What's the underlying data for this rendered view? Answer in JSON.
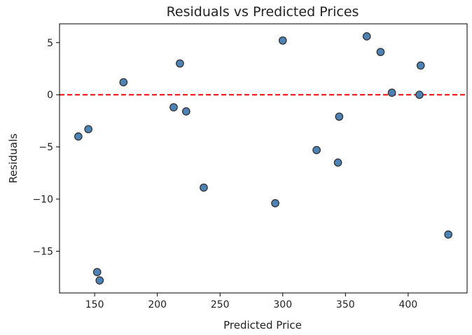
{
  "chart_data": {
    "type": "scatter",
    "title": "Residuals vs Predicted Prices",
    "xlabel": "Predicted Price",
    "ylabel": "Residuals",
    "xlim": [
      122,
      447
    ],
    "ylim": [
      -19,
      6.8
    ],
    "xticks": [
      150,
      200,
      250,
      300,
      350,
      400
    ],
    "xtick_labels": [
      "150",
      "200",
      "250",
      "300",
      "350",
      "400"
    ],
    "yticks": [
      5,
      0,
      -5,
      -10,
      -15
    ],
    "ytick_labels": [
      "5",
      "0",
      "−5",
      "−10",
      "−15"
    ],
    "grid": false,
    "reference_line": {
      "y": 0,
      "color": "#ff0000",
      "style": "dashed"
    },
    "marker_color": "#4c83b4",
    "marker_edge_color": "#333333",
    "points": [
      {
        "x": 137,
        "y": -4.0
      },
      {
        "x": 145,
        "y": -3.3
      },
      {
        "x": 152,
        "y": -17.0
      },
      {
        "x": 154,
        "y": -17.8
      },
      {
        "x": 173,
        "y": 1.2
      },
      {
        "x": 213,
        "y": -1.2
      },
      {
        "x": 218,
        "y": 3.0
      },
      {
        "x": 223,
        "y": -1.6
      },
      {
        "x": 237,
        "y": -8.9
      },
      {
        "x": 294,
        "y": -10.4
      },
      {
        "x": 300,
        "y": 5.2
      },
      {
        "x": 327,
        "y": -5.3
      },
      {
        "x": 344,
        "y": -6.5
      },
      {
        "x": 345,
        "y": -2.1
      },
      {
        "x": 367,
        "y": 5.6
      },
      {
        "x": 378,
        "y": 4.1
      },
      {
        "x": 387,
        "y": 0.2
      },
      {
        "x": 409,
        "y": 0.0
      },
      {
        "x": 410,
        "y": 2.8
      },
      {
        "x": 432,
        "y": -13.4
      }
    ]
  }
}
